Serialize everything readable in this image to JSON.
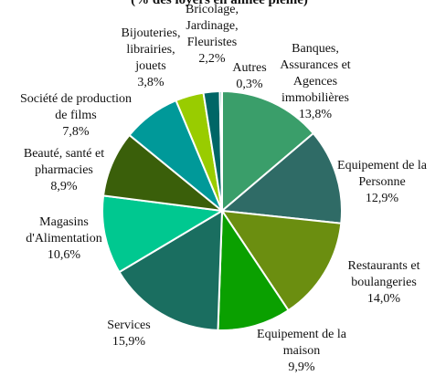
{
  "chart_data": {
    "type": "pie",
    "title": "(% des loyers en année pleine)",
    "categories": [
      "Banques,\nAssurances et\nAgences\nimmobilières",
      "Equipement de la\nPersonne",
      "Restaurants et\nboulangeries",
      "Equipement de la\nmaison",
      "Services",
      "Magasins\nd'Alimentation",
      "Beauté, santé et\npharmacies",
      "Société de production\nde films",
      "Bijouteries,\nlibrairies,\njouets",
      "Bricolage,\nJardinage,\nFleuristes",
      "Autres"
    ],
    "values": [
      13.8,
      12.9,
      14.0,
      9.9,
      15.9,
      10.6,
      8.9,
      7.8,
      3.8,
      2.2,
      0.3
    ],
    "value_labels": [
      "13,8%",
      "12,9%",
      "14,0%",
      "9,9%",
      "15,9%",
      "10,6%",
      "8,9%",
      "7,8%",
      "3,8%",
      "2,2%",
      "0,3%"
    ],
    "colors": [
      "#3a9e6a",
      "#2f6b66",
      "#6b8e10",
      "#0aa000",
      "#1a6e60",
      "#00c890",
      "#3a5f0a",
      "#009999",
      "#99cc00",
      "#006666",
      "#33aa88"
    ]
  }
}
